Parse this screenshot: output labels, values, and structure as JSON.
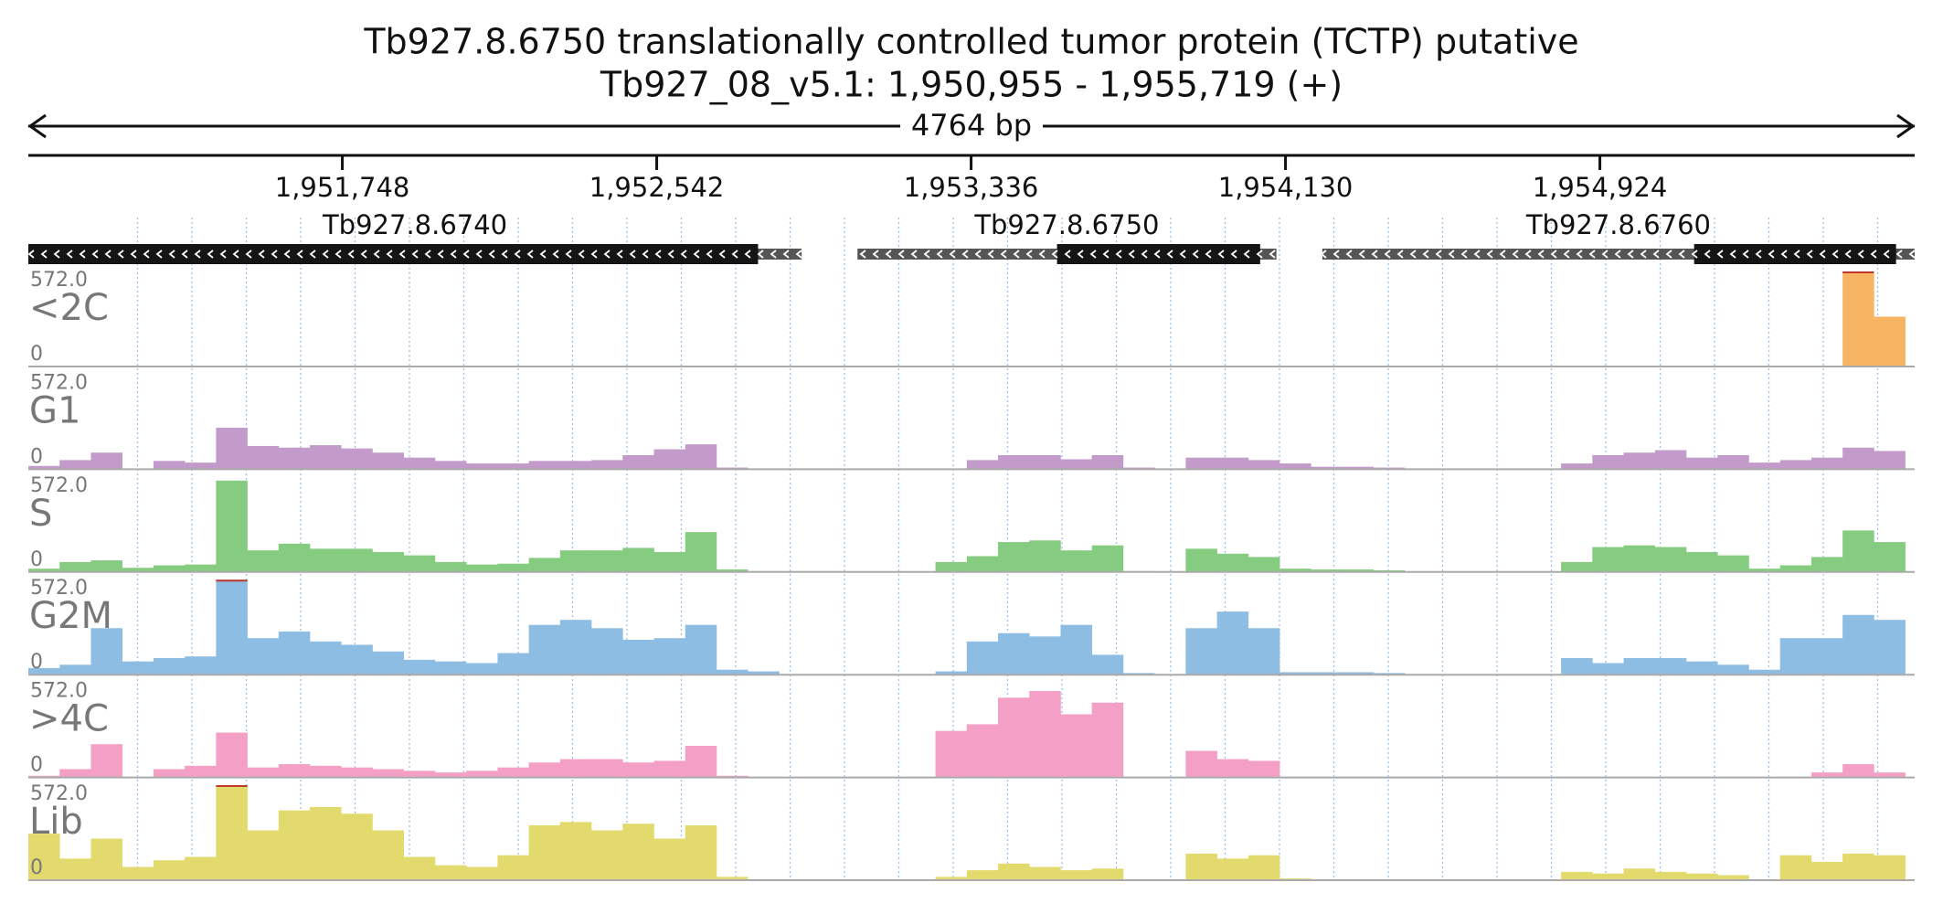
{
  "chart_data": {
    "type": "histogram",
    "title": "Tb927.8.6750  translationally controlled tumor protein (TCTP)  putative",
    "subtitle": "Tb927_08_v5.1: 1,950,955 - 1,955,719 (+)",
    "span_label": "4764 bp",
    "xlim": [
      1950955,
      1955719
    ],
    "xticks": [
      {
        "value": 1951748,
        "label": "1,951,748"
      },
      {
        "value": 1952542,
        "label": "1,952,542"
      },
      {
        "value": 1953336,
        "label": "1,953,336"
      },
      {
        "value": 1954130,
        "label": "1,954,130"
      },
      {
        "value": 1954924,
        "label": "1,954,924"
      }
    ],
    "ylim": [
      0,
      572
    ],
    "yticks": [
      0,
      {
        "value": 572,
        "label": "572.0"
      }
    ],
    "genes": [
      {
        "name": "Tb927.8.6740",
        "strand": "-",
        "start": 1950955,
        "end": 1952908,
        "cds_start": 1950955,
        "cds_end": 1952798
      },
      {
        "name": "Tb927.8.6750",
        "strand": "-",
        "start": 1953049,
        "end": 1954107,
        "cds_start": 1953553,
        "cds_end": 1954066
      },
      {
        "name": "Tb927.8.6760",
        "strand": "-",
        "start": 1954223,
        "end": 1955719,
        "cds_start": 1955162,
        "cds_end": 1955672
      }
    ],
    "bins": [
      1950955,
      1951034,
      1951113,
      1951192,
      1951271,
      1951350,
      1951429,
      1951508,
      1951587,
      1951666,
      1951745,
      1951824,
      1951903,
      1951982,
      1952061,
      1952140,
      1952219,
      1952298,
      1952377,
      1952456,
      1952535,
      1952614,
      1952693,
      1952772,
      1952851,
      1952930,
      1953009,
      1953088,
      1953167,
      1953246,
      1953325,
      1953404,
      1953483,
      1953562,
      1953641,
      1953720,
      1953799,
      1953878,
      1953957,
      1954036,
      1954115,
      1954194,
      1954273,
      1954352,
      1954431,
      1954510,
      1954589,
      1954668,
      1954747,
      1954826,
      1954905,
      1954984,
      1955063,
      1955142,
      1955221,
      1955300,
      1955379,
      1955458,
      1955537,
      1955616,
      1955695
    ],
    "series": [
      {
        "name": "<2C",
        "color": "#f7b463",
        "values": [
          0,
          0,
          0,
          0,
          0,
          0,
          0,
          0,
          0,
          0,
          0,
          0,
          0,
          0,
          0,
          0,
          0,
          0,
          0,
          0,
          0,
          0,
          0,
          0,
          0,
          0,
          0,
          0,
          0,
          0,
          0,
          0,
          0,
          0,
          0,
          0,
          0,
          0,
          0,
          0,
          0,
          0,
          0,
          0,
          0,
          0,
          0,
          0,
          0,
          0,
          0,
          0,
          0,
          0,
          0,
          0,
          0,
          0,
          572,
          300
        ]
      },
      {
        "name": "G1",
        "color": "#c39bca",
        "values": [
          20,
          55,
          100,
          0,
          50,
          40,
          250,
          140,
          130,
          145,
          125,
          100,
          70,
          50,
          35,
          35,
          50,
          50,
          55,
          85,
          120,
          150,
          10,
          0,
          0,
          0,
          0,
          0,
          0,
          0,
          55,
          85,
          85,
          60,
          85,
          10,
          0,
          70,
          70,
          55,
          35,
          15,
          15,
          10,
          0,
          0,
          0,
          0,
          0,
          35,
          85,
          100,
          115,
          70,
          85,
          40,
          55,
          70,
          130,
          110
        ]
      },
      {
        "name": "S",
        "color": "#86cc80",
        "values": [
          20,
          60,
          70,
          25,
          40,
          45,
          550,
          130,
          170,
          140,
          140,
          120,
          100,
          60,
          45,
          50,
          85,
          130,
          130,
          145,
          120,
          240,
          15,
          5,
          5,
          5,
          0,
          0,
          0,
          60,
          95,
          180,
          190,
          130,
          160,
          5,
          0,
          140,
          110,
          90,
          20,
          15,
          15,
          10,
          0,
          0,
          0,
          0,
          0,
          60,
          150,
          160,
          150,
          120,
          100,
          20,
          40,
          90,
          250,
          180
        ]
      },
      {
        "name": "G2M",
        "color": "#8dbde3",
        "values": [
          40,
          60,
          280,
          80,
          100,
          110,
          572,
          220,
          260,
          200,
          180,
          140,
          90,
          80,
          70,
          130,
          300,
          330,
          280,
          210,
          220,
          300,
          30,
          20,
          0,
          0,
          0,
          0,
          0,
          20,
          200,
          250,
          230,
          300,
          120,
          10,
          0,
          280,
          380,
          280,
          15,
          15,
          15,
          10,
          0,
          0,
          0,
          0,
          0,
          100,
          70,
          100,
          100,
          80,
          60,
          30,
          220,
          220,
          360,
          330
        ]
      },
      {
        "name": ">4C",
        "color": "#f49fc5",
        "values": [
          10,
          50,
          200,
          0,
          50,
          70,
          270,
          60,
          80,
          70,
          60,
          50,
          40,
          30,
          40,
          60,
          90,
          110,
          110,
          90,
          100,
          190,
          10,
          0,
          0,
          0,
          0,
          0,
          0,
          280,
          320,
          480,
          520,
          380,
          450,
          0,
          0,
          160,
          110,
          100,
          0,
          0,
          0,
          0,
          0,
          0,
          0,
          0,
          0,
          0,
          0,
          0,
          0,
          0,
          0,
          0,
          0,
          30,
          80,
          30
        ]
      },
      {
        "name": "Lib",
        "color": "#e3da6e",
        "values": [
          280,
          130,
          250,
          80,
          120,
          140,
          572,
          300,
          420,
          440,
          400,
          300,
          140,
          90,
          80,
          150,
          330,
          350,
          300,
          340,
          250,
          330,
          20,
          0,
          0,
          0,
          0,
          0,
          0,
          20,
          60,
          100,
          80,
          60,
          70,
          5,
          0,
          160,
          130,
          150,
          10,
          0,
          0,
          0,
          0,
          0,
          0,
          0,
          0,
          50,
          40,
          70,
          50,
          40,
          30,
          5,
          150,
          110,
          160,
          150
        ]
      }
    ]
  }
}
